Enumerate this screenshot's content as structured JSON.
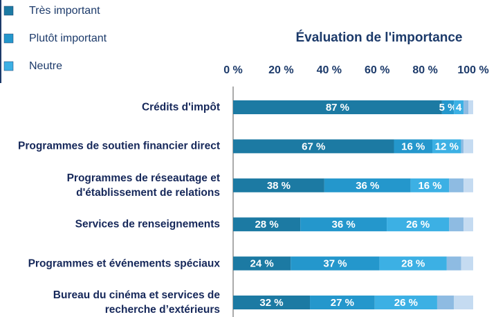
{
  "chart_data": {
    "type": "stacked_bar_horizontal",
    "title": "Évaluation de l'importance",
    "categories": [
      "Crédits d'impôt",
      "Programmes de soutien financier direct",
      "Programmes de réseautage et d'établissement de relations",
      "Services de renseignements",
      "Programmes et événements spéciaux",
      "Bureau du cinéma et services de recherche d’extérieurs"
    ],
    "series": [
      {
        "name": "Très important",
        "color": "#1c7aa3",
        "values": [
          87,
          67,
          38,
          28,
          24,
          32
        ],
        "value_labels": [
          "87 %",
          "67 %",
          "38 %",
          "28 %",
          "24 %",
          "32 %"
        ]
      },
      {
        "name": "Plutôt important",
        "color": "#2497cc",
        "values": [
          5,
          16,
          36,
          36,
          37,
          27
        ],
        "value_labels": [
          "5 %",
          "16 %",
          "36 %",
          "36 %",
          "37 %",
          "27 %"
        ]
      },
      {
        "name": "Neutre",
        "color": "#3cb0e4",
        "values": [
          4,
          12,
          16,
          26,
          28,
          26
        ],
        "value_labels": [
          "4",
          "12 %",
          "16 %",
          "26 %",
          "28 %",
          "26 %"
        ]
      },
      {
        "color": "#8ebbe2",
        "values": [
          2,
          1,
          6,
          6,
          6,
          7
        ]
      },
      {
        "color": "#c5dbf1",
        "values": [
          2,
          4,
          4,
          4,
          5,
          8
        ]
      }
    ],
    "xlim": [
      0,
      100
    ],
    "xticks": [
      {
        "value": 0,
        "label": "0 %"
      },
      {
        "value": 20,
        "label": "20 %"
      },
      {
        "value": 40,
        "label": "40 %"
      },
      {
        "value": 60,
        "label": "60 %"
      },
      {
        "value": 80,
        "label": "80 %"
      },
      {
        "value": 100,
        "label": "100 %"
      }
    ]
  }
}
